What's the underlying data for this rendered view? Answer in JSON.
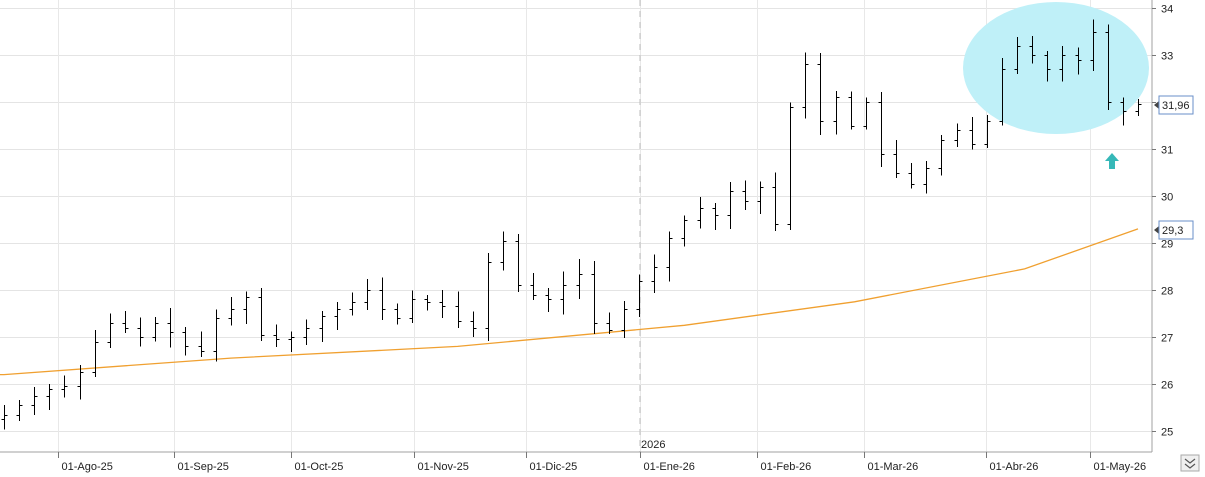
{
  "chart_data": {
    "type": "ohlc",
    "title": "",
    "xlabel": "",
    "ylabel": "",
    "ylim": [
      24.6,
      34.2
    ],
    "y_ticks": [
      25,
      26,
      27,
      28,
      29,
      30,
      31,
      32,
      33,
      34
    ],
    "x_ticks": [
      "01-Ago-25",
      "01-Sep-25",
      "01-Oct-25",
      "01-Nov-25",
      "01-Dic-25",
      "01-Ene-26",
      "01-Feb-26",
      "01-Mar-26",
      "01-Abr-26",
      "01-May-26"
    ],
    "year_marker": {
      "label": "2026",
      "at": "01-Ene-26"
    },
    "last_price": {
      "label": "31,96",
      "value": 31.96
    },
    "moving_average": {
      "last_label": "29,3",
      "last_value": 29.3,
      "color": "#f0a030",
      "x": [
        0,
        0.2,
        0.4,
        0.6,
        0.75,
        0.9,
        1.0
      ],
      "y": [
        26.2,
        26.55,
        26.8,
        27.25,
        27.75,
        28.45,
        29.3
      ]
    },
    "closes": [
      25.35,
      25.55,
      25.75,
      25.9,
      25.95,
      26.25,
      26.9,
      27.3,
      27.2,
      27.0,
      27.3,
      27.1,
      26.8,
      26.7,
      27.4,
      27.6,
      27.85,
      27.05,
      26.95,
      27.0,
      27.2,
      27.45,
      27.6,
      27.75,
      28.0,
      27.6,
      27.4,
      27.8,
      27.75,
      27.65,
      27.35,
      27.2,
      28.6,
      29.05,
      28.1,
      27.9,
      27.8,
      28.1,
      28.35,
      27.3,
      27.15,
      27.6,
      28.2,
      28.5,
      29.1,
      29.5,
      29.75,
      29.6,
      30.1,
      29.9,
      30.2,
      29.4,
      31.9,
      32.8,
      31.6,
      32.1,
      31.5,
      32.0,
      30.9,
      30.5,
      30.25,
      30.6,
      31.2,
      31.4,
      31.1,
      31.6,
      32.7,
      33.2,
      33.0,
      32.7,
      33.0,
      32.9,
      33.5,
      32.0,
      31.8,
      31.96
    ],
    "marker_color": "#36b8b8",
    "highlight_color": "#bff0f8"
  },
  "ui": {
    "scroll_icon": "double-chevron-down-icon"
  }
}
